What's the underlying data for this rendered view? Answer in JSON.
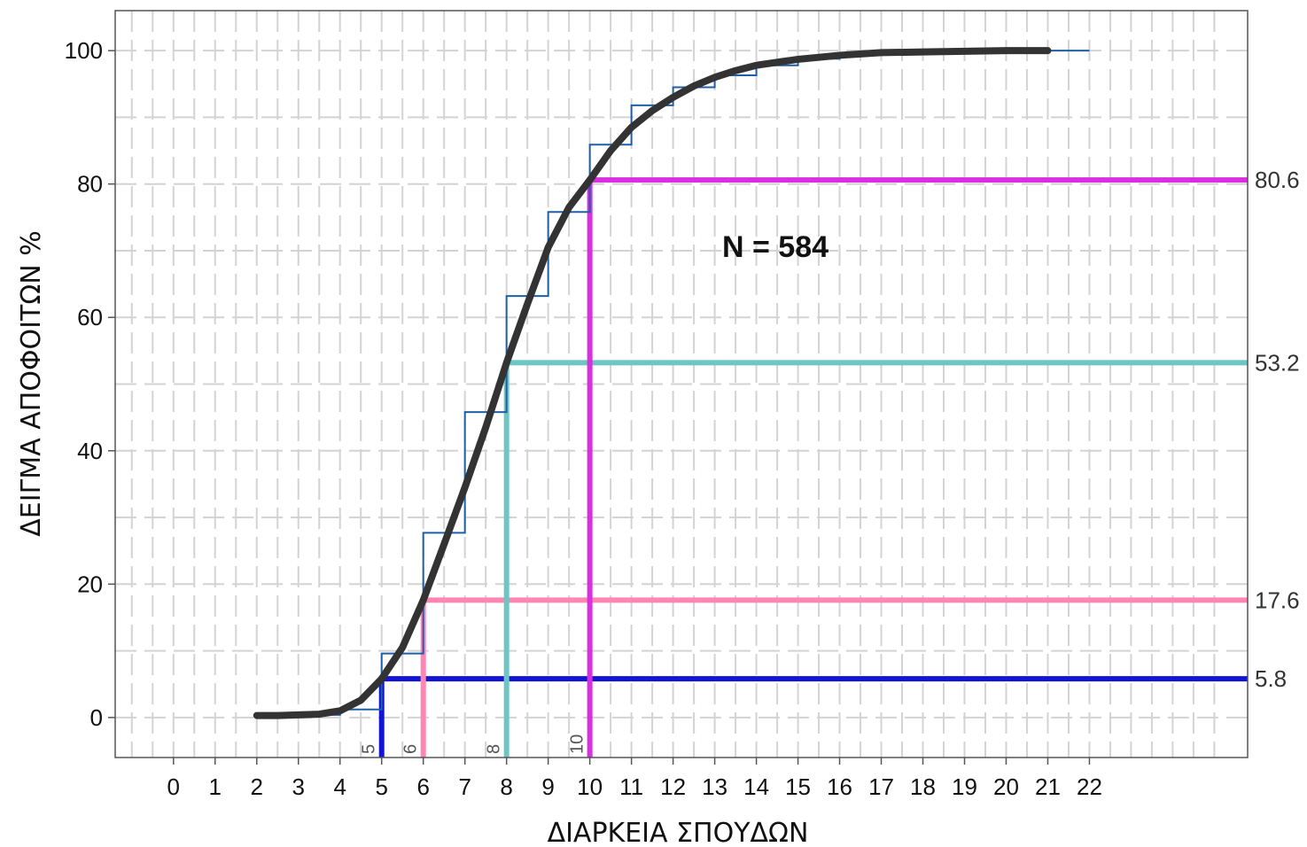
{
  "chart_data": {
    "type": "line",
    "title": "",
    "xlabel": "ΔΙΑΡΚΕΙΑ ΣΠΟΥΔΩΝ",
    "ylabel": "ΔΕΙΓΜΑ ΑΠΟΦΟΙΤΩΝ %",
    "xlim": [
      -1.4,
      25.8
    ],
    "ylim": [
      -6,
      106
    ],
    "x_ticks": [
      "0",
      "1",
      "2",
      "3",
      "4",
      "5",
      "6",
      "7",
      "8",
      "9",
      "10",
      "11",
      "12",
      "13",
      "14",
      "15",
      "16",
      "17",
      "18",
      "19",
      "20",
      "21",
      "22"
    ],
    "y_ticks": [
      "0",
      "20",
      "40",
      "60",
      "80",
      "100"
    ],
    "grid": true,
    "annotation": "N = 584",
    "series": [
      {
        "type": "step",
        "color": "#1f5fa8",
        "x": [
          2,
          3,
          4,
          5,
          6,
          7,
          8,
          9,
          10,
          11,
          12,
          13,
          14,
          15,
          16,
          17,
          18,
          19,
          20,
          21
        ],
        "y": [
          0.3,
          0.4,
          1.2,
          9.6,
          27.7,
          45.8,
          63.2,
          75.8,
          85.9,
          91.8,
          94.5,
          96.3,
          97.8,
          98.8,
          99.3,
          99.7,
          99.8,
          99.9,
          100,
          100
        ]
      },
      {
        "type": "line",
        "color": "#333333",
        "x": [
          2,
          2.5,
          3,
          3.5,
          4,
          4.5,
          5,
          5.5,
          6,
          6.5,
          7,
          7.5,
          8,
          8.5,
          9,
          9.5,
          10,
          10.5,
          11,
          11.5,
          12,
          12.5,
          13,
          13.5,
          14,
          15,
          16,
          17,
          18,
          19,
          20,
          21
        ],
        "y": [
          0.3,
          0.3,
          0.4,
          0.5,
          1.0,
          2.6,
          5.8,
          10.5,
          17.6,
          26.0,
          34.5,
          43.5,
          53.2,
          62.0,
          70.5,
          76.5,
          80.6,
          85.0,
          88.5,
          91.0,
          93.0,
          94.7,
          96.0,
          97.0,
          97.8,
          98.7,
          99.3,
          99.7,
          99.8,
          99.9,
          100,
          100
        ]
      }
    ],
    "reference_lines": [
      {
        "x": 5,
        "y": 5.8,
        "x_label": "5",
        "y_label": "5.8",
        "color": "#1313d4"
      },
      {
        "x": 6,
        "y": 17.6,
        "x_label": "6",
        "y_label": "17.6",
        "color": "#ff85b3"
      },
      {
        "x": 8,
        "y": 53.2,
        "x_label": "8",
        "y_label": "53.2",
        "color": "#6cc7c4"
      },
      {
        "x": 10,
        "y": 80.6,
        "x_label": "10",
        "y_label": "80.6",
        "color": "#da2fe0"
      }
    ]
  }
}
